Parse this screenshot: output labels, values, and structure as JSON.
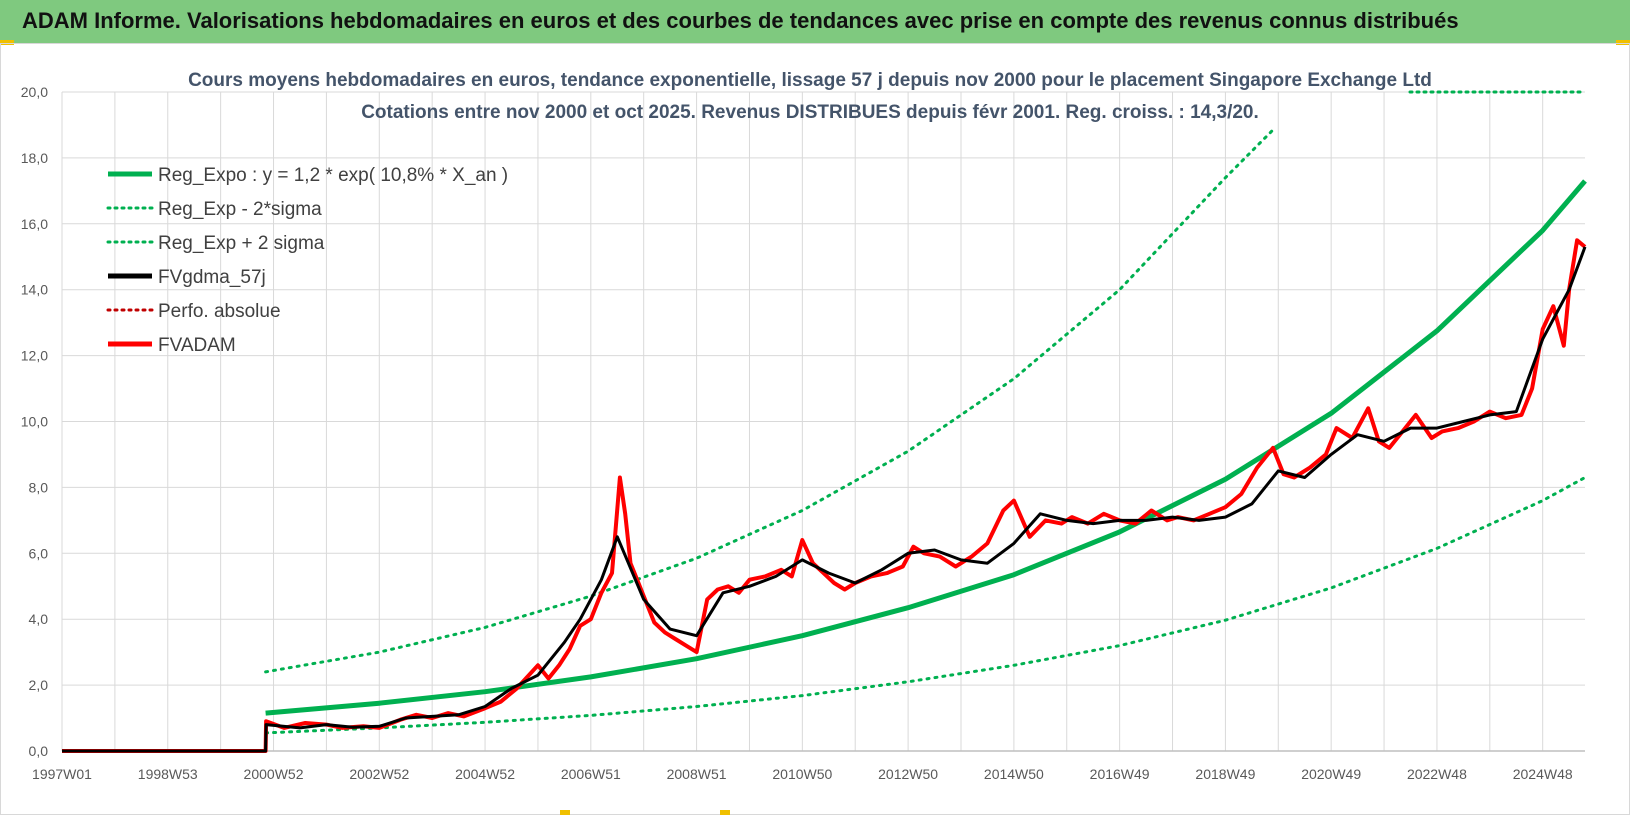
{
  "banner": {
    "title": "ADAM Informe. Valorisations hebdomadaires en euros et des courbes de tendances avec prise en compte des revenus connus distribués"
  },
  "colors": {
    "banner_bg": "#7fc97f",
    "trend_green": "#00b050",
    "smooth_black": "#000000",
    "price_red": "#ff0000",
    "grid": "#d9d9d9"
  },
  "chart_data": {
    "type": "line",
    "title": "Cours moyens hebdomadaires en euros, tendance exponentielle, lissage 57 j depuis nov 2000 pour le placement Singapore Exchange Ltd",
    "subtitle": "Cotations entre nov 2000 et oct 2025. Revenus DISTRIBUES depuis févr 2001. Reg. croiss. : 14,3/20.",
    "xlabel": "",
    "ylabel": "",
    "ylim": [
      0,
      20
    ],
    "y_ticks": [
      "0,0",
      "2,0",
      "4,0",
      "6,0",
      "8,0",
      "10,0",
      "12,0",
      "14,0",
      "16,0",
      "18,0",
      "20,0"
    ],
    "x_range": [
      1997.0,
      2025.8
    ],
    "x_ticks": [
      {
        "label": "1997W01",
        "x": 1997.0
      },
      {
        "label": "1998W53",
        "x": 1999.0
      },
      {
        "label": "2000W52",
        "x": 2001.0
      },
      {
        "label": "2002W52",
        "x": 2003.0
      },
      {
        "label": "2004W52",
        "x": 2005.0
      },
      {
        "label": "2006W51",
        "x": 2007.0
      },
      {
        "label": "2008W51",
        "x": 2009.0
      },
      {
        "label": "2010W50",
        "x": 2011.0
      },
      {
        "label": "2012W50",
        "x": 2013.0
      },
      {
        "label": "2014W50",
        "x": 2015.0
      },
      {
        "label": "2016W49",
        "x": 2017.0
      },
      {
        "label": "2018W49",
        "x": 2019.0
      },
      {
        "label": "2020W49",
        "x": 2021.0
      },
      {
        "label": "2022W48",
        "x": 2023.0
      },
      {
        "label": "2024W48",
        "x": 2025.0
      }
    ],
    "grid": true,
    "legend_position": "top-left",
    "series": [
      {
        "name": "Reg_Expo : y = 1,2 * exp( 10,8% *  X_an )",
        "color": "#00b050",
        "style": "solid",
        "width": 5,
        "x": [
          2000.85,
          2003,
          2005,
          2007,
          2009,
          2011,
          2013,
          2015,
          2017,
          2019,
          2021,
          2023,
          2025,
          2025.8
        ],
        "y": [
          1.15,
          1.45,
          1.8,
          2.25,
          2.8,
          3.5,
          4.35,
          5.35,
          6.65,
          8.25,
          10.25,
          12.75,
          15.8,
          17.3
        ]
      },
      {
        "name": "Reg_Exp - 2*sigma",
        "color": "#00b050",
        "style": "dotted",
        "width": 3,
        "x": [
          2000.85,
          2003,
          2005,
          2007,
          2009,
          2011,
          2013,
          2015,
          2017,
          2019,
          2021,
          2023,
          2025,
          2025.8
        ],
        "y": [
          0.55,
          0.7,
          0.87,
          1.08,
          1.35,
          1.68,
          2.1,
          2.6,
          3.2,
          3.97,
          4.95,
          6.15,
          7.6,
          8.3
        ]
      },
      {
        "name": "Reg_Exp + 2 sigma",
        "color": "#00b050",
        "style": "dotted",
        "width": 3,
        "x": [
          2000.85,
          2003,
          2005,
          2007,
          2009,
          2011,
          2013,
          2015,
          2017,
          2019,
          2019.9
        ],
        "y": [
          2.4,
          3.0,
          3.75,
          4.7,
          5.85,
          7.3,
          9.1,
          11.3,
          14.0,
          17.4,
          18.85
        ]
      },
      {
        "name": "FVgdma_57j",
        "color": "#000000",
        "style": "solid",
        "width": 3,
        "x": [
          1997.0,
          2000.85,
          2000.86,
          2001.5,
          2002,
          2002.5,
          2003,
          2003.5,
          2004,
          2004.5,
          2005,
          2005.5,
          2006,
          2006.5,
          2006.8,
          2007.2,
          2007.5,
          2008,
          2008.5,
          2009,
          2009.5,
          2010,
          2010.5,
          2011,
          2011.5,
          2012,
          2012.5,
          2013,
          2013.5,
          2014,
          2014.5,
          2015,
          2015.5,
          2016,
          2016.5,
          2017,
          2017.5,
          2018,
          2018.5,
          2019,
          2019.5,
          2020,
          2020.5,
          2021,
          2021.5,
          2022,
          2022.5,
          2023,
          2023.5,
          2024,
          2024.5,
          2025,
          2025.5,
          2025.8
        ],
        "y": [
          0,
          0,
          0.8,
          0.7,
          0.8,
          0.72,
          0.75,
          1.0,
          1.05,
          1.1,
          1.35,
          1.9,
          2.3,
          3.3,
          4.0,
          5.2,
          6.5,
          4.6,
          3.7,
          3.5,
          4.8,
          5.0,
          5.3,
          5.8,
          5.4,
          5.1,
          5.5,
          6.0,
          6.1,
          5.8,
          5.7,
          6.3,
          7.2,
          7.0,
          6.9,
          7.0,
          7.0,
          7.1,
          7.0,
          7.1,
          7.5,
          8.5,
          8.3,
          9.0,
          9.6,
          9.4,
          9.8,
          9.8,
          10.0,
          10.2,
          10.3,
          12.5,
          14.0,
          15.3
        ]
      },
      {
        "name": "Perfo. absolue",
        "color": "#c00000",
        "style": "dotted",
        "width": 2,
        "x": [],
        "y": []
      },
      {
        "name": "FVADAM",
        "color": "#ff0000",
        "style": "solid",
        "width": 4,
        "x": [
          1997.0,
          2000.85,
          2000.86,
          2001.2,
          2001.6,
          2002,
          2002.3,
          2002.7,
          2003,
          2003.4,
          2003.7,
          2004,
          2004.3,
          2004.6,
          2005,
          2005.3,
          2005.6,
          2006,
          2006.2,
          2006.4,
          2006.6,
          2006.8,
          2007.0,
          2007.2,
          2007.4,
          2007.55,
          2007.65,
          2007.75,
          2008.0,
          2008.2,
          2008.4,
          2008.6,
          2008.8,
          2009.0,
          2009.2,
          2009.4,
          2009.6,
          2009.8,
          2010.0,
          2010.3,
          2010.6,
          2010.8,
          2011.0,
          2011.2,
          2011.4,
          2011.6,
          2011.8,
          2012.0,
          2012.3,
          2012.6,
          2012.9,
          2013.1,
          2013.3,
          2013.6,
          2013.9,
          2014.2,
          2014.5,
          2014.8,
          2015.0,
          2015.3,
          2015.6,
          2015.9,
          2016.1,
          2016.4,
          2016.7,
          2017.0,
          2017.3,
          2017.6,
          2017.9,
          2018.1,
          2018.4,
          2018.7,
          2019.0,
          2019.3,
          2019.6,
          2019.9,
          2020.1,
          2020.3,
          2020.6,
          2020.9,
          2021.1,
          2021.4,
          2021.7,
          2021.9,
          2022.1,
          2022.4,
          2022.6,
          2022.9,
          2023.1,
          2023.4,
          2023.7,
          2024.0,
          2024.3,
          2024.6,
          2024.8,
          2025.0,
          2025.2,
          2025.4,
          2025.5,
          2025.65,
          2025.8
        ],
        "y": [
          0,
          0,
          0.9,
          0.7,
          0.85,
          0.8,
          0.7,
          0.75,
          0.7,
          0.95,
          1.1,
          1.0,
          1.15,
          1.05,
          1.3,
          1.5,
          1.9,
          2.6,
          2.2,
          2.6,
          3.1,
          3.8,
          4.0,
          4.8,
          5.4,
          8.3,
          7.2,
          5.7,
          4.7,
          3.9,
          3.6,
          3.4,
          3.2,
          3.0,
          4.6,
          4.9,
          5.0,
          4.8,
          5.2,
          5.3,
          5.5,
          5.3,
          6.4,
          5.7,
          5.4,
          5.1,
          4.9,
          5.1,
          5.3,
          5.4,
          5.6,
          6.2,
          6.0,
          5.9,
          5.6,
          5.9,
          6.3,
          7.3,
          7.6,
          6.5,
          7.0,
          6.9,
          7.1,
          6.9,
          7.2,
          7.0,
          6.9,
          7.3,
          7.0,
          7.1,
          7.0,
          7.2,
          7.4,
          7.8,
          8.6,
          9.2,
          8.4,
          8.3,
          8.6,
          9.0,
          9.8,
          9.5,
          10.4,
          9.4,
          9.2,
          9.8,
          10.2,
          9.5,
          9.7,
          9.8,
          10.0,
          10.3,
          10.1,
          10.2,
          11.0,
          12.8,
          13.5,
          12.3,
          14.0,
          15.5,
          15.3
        ]
      }
    ]
  }
}
